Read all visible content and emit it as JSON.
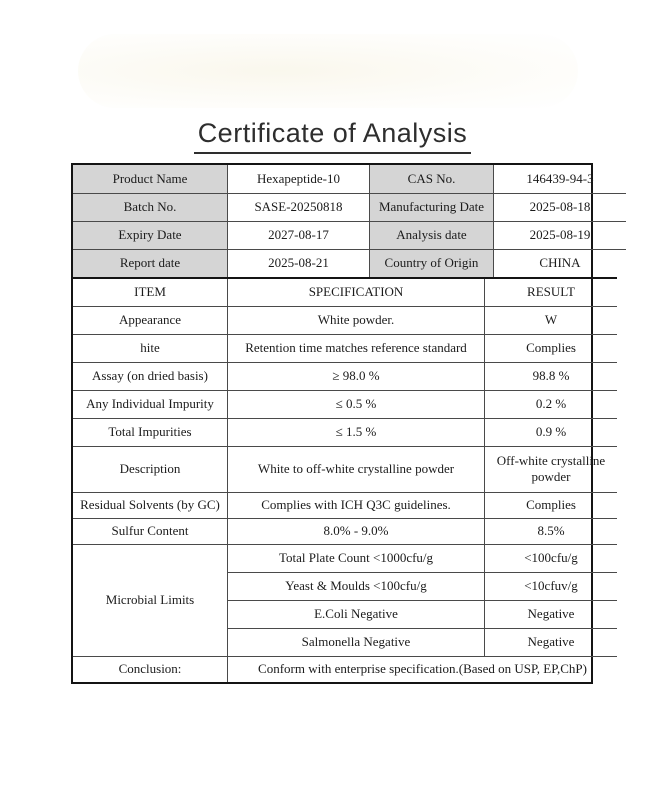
{
  "document": {
    "title": "Certificate of Analysis"
  },
  "info_table": {
    "rows": [
      {
        "label_left": "Product Name",
        "value_left": "Hexapeptide-10",
        "label_right": "CAS No.",
        "value_right": "146439-94-3"
      },
      {
        "label_left": "Batch No.",
        "value_left": "SASE-20250818",
        "label_right": "Manufacturing Date",
        "value_right": "2025-08-18"
      },
      {
        "label_left": "Expiry Date",
        "value_left": "2027-08-17",
        "label_right": "Analysis date",
        "value_right": "2025-08-19"
      },
      {
        "label_left": "Report date",
        "value_left": "2025-08-21",
        "label_right": "Country of Origin",
        "value_right": "CHINA"
      }
    ]
  },
  "spec_table": {
    "header": {
      "item": "ITEM",
      "specification": "SPECIFICATION",
      "result": "RESULT"
    },
    "rows": [
      {
        "item": "Appearance",
        "specification": "White powder.",
        "result": "W"
      },
      {
        "item": "hite",
        "specification": "Retention time matches reference standard",
        "result": "Complies"
      },
      {
        "item": "Assay (on dried basis)",
        "specification": "≥ 98.0 %",
        "result": "98.8 %"
      },
      {
        "item": "Any Individual Impurity",
        "specification": "≤ 0.5 %",
        "result": "0.2 %"
      },
      {
        "item": "Total Impurities",
        "specification": "≤ 1.5 %",
        "result": "0.9 %"
      },
      {
        "item": "Description",
        "specification": "White to off-white crystalline powder",
        "result": "Off-white crystalline powder"
      },
      {
        "item": "Residual Solvents (by GC)",
        "specification": "Complies with ICH Q3C guidelines.",
        "result": "Complies"
      },
      {
        "item": "Sulfur Content",
        "specification": "8.0% - 9.0%",
        "result": "8.5%"
      }
    ],
    "microbial": {
      "label": "Microbial Limits",
      "rows": [
        {
          "specification": "Total Plate Count <1000cfu/g",
          "result": "<100cfu/g"
        },
        {
          "specification": "Yeast & Moulds <100cfu/g",
          "result": "<10cfuv/g"
        },
        {
          "specification": "E.Coli Negative",
          "result": "Negative"
        },
        {
          "specification": "Salmonella Negative",
          "result": "Negative"
        }
      ]
    },
    "conclusion": {
      "label": "Conclusion:",
      "text": "Conform with enterprise specification.(Based on USP, EP,ChP)"
    }
  },
  "colors": {
    "header_cell_bg": "#d5d5d5",
    "border_outer": "#141414",
    "border_inner": "#4a4a4a",
    "title_color": "#2e2e2e"
  }
}
